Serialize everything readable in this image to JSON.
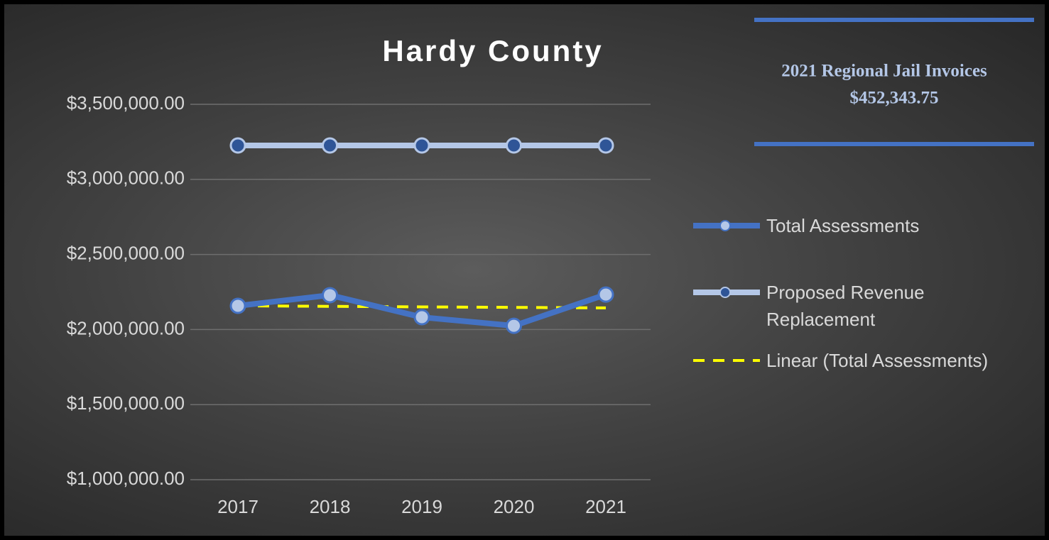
{
  "chart_data": {
    "type": "line",
    "title": "Hardy County",
    "annotation": [
      "2021 Regional Jail Invoices",
      "$452,343.75"
    ],
    "categories": [
      "2017",
      "2018",
      "2019",
      "2020",
      "2021"
    ],
    "series": [
      {
        "name": "Total Assessments",
        "color": "#4472c4",
        "marker_color": "#b4c7e7",
        "values": [
          2158000,
          2229000,
          2082000,
          2025000,
          2233000
        ]
      },
      {
        "name": "Proposed Revenue Replacement",
        "color": "#b4c7e7",
        "marker_color": "#2f5597",
        "values": [
          3226000,
          3226000,
          3226000,
          3226000,
          3226000
        ]
      },
      {
        "name": "Linear (Total Assessments)",
        "color": "#ffff00",
        "dashed": true,
        "values": [
          2158000,
          2154500,
          2151000,
          2147500,
          2144000
        ]
      }
    ],
    "ylim": [
      1000000,
      3500000
    ],
    "yticks": [
      {
        "value": 1000000,
        "label": "$1,000,000.00"
      },
      {
        "value": 1500000,
        "label": "$1,500,000.00"
      },
      {
        "value": 2000000,
        "label": "$2,000,000.00"
      },
      {
        "value": 2500000,
        "label": "$2,500,000.00"
      },
      {
        "value": 3000000,
        "label": "$3,000,000.00"
      },
      {
        "value": 3500000,
        "label": "$3,500,000.00"
      }
    ],
    "grid": true
  }
}
